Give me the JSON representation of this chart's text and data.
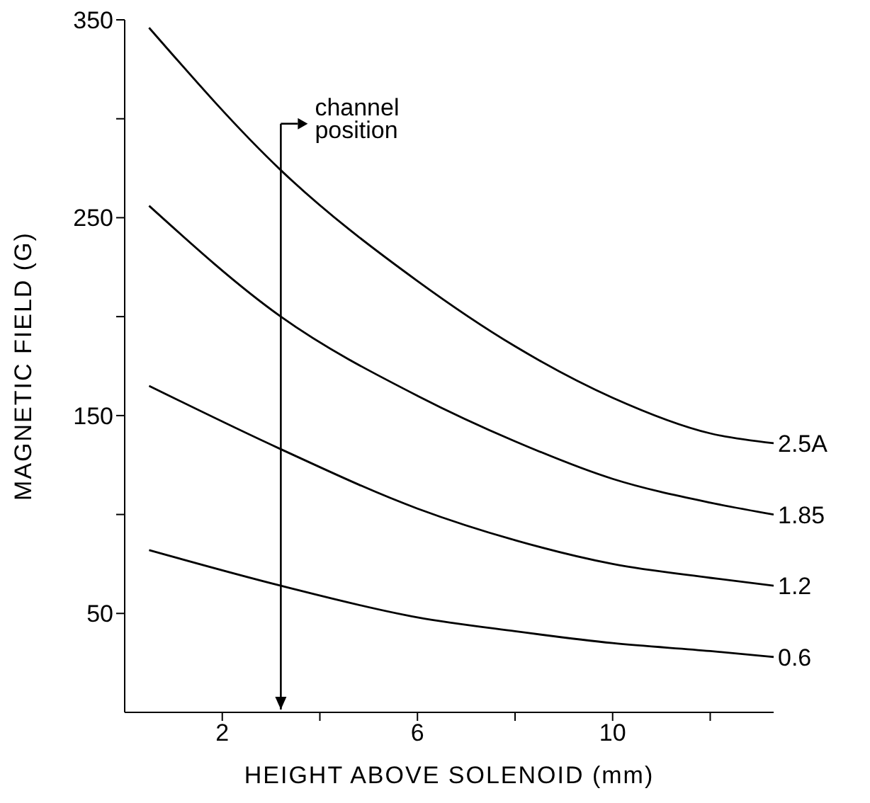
{
  "chart_data": {
    "type": "line",
    "xlabel": "HEIGHT ABOVE SOLENOID (mm)",
    "ylabel": "MAGNETIC FIELD (G)",
    "x": [
      0.5,
      3.2,
      6,
      8,
      10,
      12,
      13.3
    ],
    "series": [
      {
        "name": "2.5A",
        "color": "#000000",
        "values": [
          346,
          274,
          218,
          185,
          159,
          141,
          136
        ]
      },
      {
        "name": "1.85",
        "color": "#000000",
        "values": [
          256,
          200,
          160,
          137,
          118,
          106,
          100
        ]
      },
      {
        "name": "1.2",
        "color": "#000000",
        "values": [
          165,
          133,
          103,
          87,
          75,
          68,
          64
        ]
      },
      {
        "name": "0.6",
        "color": "#000000",
        "values": [
          82,
          64,
          48,
          41,
          35,
          31,
          28
        ]
      }
    ],
    "xlim": [
      0,
      13.3
    ],
    "ylim": [
      0,
      350
    ],
    "xticks": [
      2,
      {
        "value": 4,
        "label": null
      },
      6,
      {
        "value": 8,
        "label": null
      },
      10,
      {
        "value": 12,
        "label": null
      }
    ],
    "yticks": [
      50,
      {
        "value": 100,
        "label": null
      },
      150,
      {
        "value": 200,
        "label": null
      },
      250,
      {
        "value": 300,
        "label": null
      },
      350
    ],
    "ref_lines": [
      {
        "axis": "x",
        "value": 3.2,
        "label": "channel position",
        "color": "#000000",
        "line_style": "solid"
      }
    ],
    "grid": false,
    "legend": false,
    "marker": "none",
    "line_style": "solid"
  }
}
